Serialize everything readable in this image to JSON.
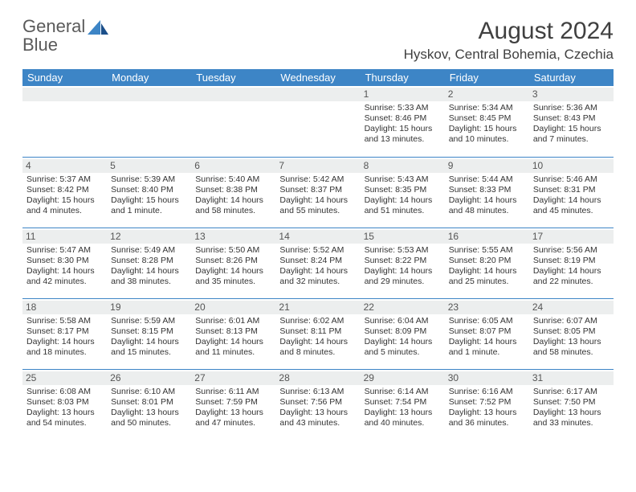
{
  "logo": {
    "word1": "General",
    "word2": "Blue"
  },
  "title": "August 2024",
  "location": "Hyskov, Central Bohemia, Czechia",
  "colors": {
    "header_bg": "#3d85c6",
    "header_text": "#ffffff",
    "daynum_bg": "#eceeee",
    "border": "#3d85c6",
    "text": "#333333",
    "logo_gray": "#5a5a5a",
    "logo_blue": "#3d85c6"
  },
  "weekdays": [
    "Sunday",
    "Monday",
    "Tuesday",
    "Wednesday",
    "Thursday",
    "Friday",
    "Saturday"
  ],
  "weeks": [
    [
      null,
      null,
      null,
      null,
      {
        "n": "1",
        "sunrise": "5:33 AM",
        "sunset": "8:46 PM",
        "daylight": "15 hours and 13 minutes."
      },
      {
        "n": "2",
        "sunrise": "5:34 AM",
        "sunset": "8:45 PM",
        "daylight": "15 hours and 10 minutes."
      },
      {
        "n": "3",
        "sunrise": "5:36 AM",
        "sunset": "8:43 PM",
        "daylight": "15 hours and 7 minutes."
      }
    ],
    [
      {
        "n": "4",
        "sunrise": "5:37 AM",
        "sunset": "8:42 PM",
        "daylight": "15 hours and 4 minutes."
      },
      {
        "n": "5",
        "sunrise": "5:39 AM",
        "sunset": "8:40 PM",
        "daylight": "15 hours and 1 minute."
      },
      {
        "n": "6",
        "sunrise": "5:40 AM",
        "sunset": "8:38 PM",
        "daylight": "14 hours and 58 minutes."
      },
      {
        "n": "7",
        "sunrise": "5:42 AM",
        "sunset": "8:37 PM",
        "daylight": "14 hours and 55 minutes."
      },
      {
        "n": "8",
        "sunrise": "5:43 AM",
        "sunset": "8:35 PM",
        "daylight": "14 hours and 51 minutes."
      },
      {
        "n": "9",
        "sunrise": "5:44 AM",
        "sunset": "8:33 PM",
        "daylight": "14 hours and 48 minutes."
      },
      {
        "n": "10",
        "sunrise": "5:46 AM",
        "sunset": "8:31 PM",
        "daylight": "14 hours and 45 minutes."
      }
    ],
    [
      {
        "n": "11",
        "sunrise": "5:47 AM",
        "sunset": "8:30 PM",
        "daylight": "14 hours and 42 minutes."
      },
      {
        "n": "12",
        "sunrise": "5:49 AM",
        "sunset": "8:28 PM",
        "daylight": "14 hours and 38 minutes."
      },
      {
        "n": "13",
        "sunrise": "5:50 AM",
        "sunset": "8:26 PM",
        "daylight": "14 hours and 35 minutes."
      },
      {
        "n": "14",
        "sunrise": "5:52 AM",
        "sunset": "8:24 PM",
        "daylight": "14 hours and 32 minutes."
      },
      {
        "n": "15",
        "sunrise": "5:53 AM",
        "sunset": "8:22 PM",
        "daylight": "14 hours and 29 minutes."
      },
      {
        "n": "16",
        "sunrise": "5:55 AM",
        "sunset": "8:20 PM",
        "daylight": "14 hours and 25 minutes."
      },
      {
        "n": "17",
        "sunrise": "5:56 AM",
        "sunset": "8:19 PM",
        "daylight": "14 hours and 22 minutes."
      }
    ],
    [
      {
        "n": "18",
        "sunrise": "5:58 AM",
        "sunset": "8:17 PM",
        "daylight": "14 hours and 18 minutes."
      },
      {
        "n": "19",
        "sunrise": "5:59 AM",
        "sunset": "8:15 PM",
        "daylight": "14 hours and 15 minutes."
      },
      {
        "n": "20",
        "sunrise": "6:01 AM",
        "sunset": "8:13 PM",
        "daylight": "14 hours and 11 minutes."
      },
      {
        "n": "21",
        "sunrise": "6:02 AM",
        "sunset": "8:11 PM",
        "daylight": "14 hours and 8 minutes."
      },
      {
        "n": "22",
        "sunrise": "6:04 AM",
        "sunset": "8:09 PM",
        "daylight": "14 hours and 5 minutes."
      },
      {
        "n": "23",
        "sunrise": "6:05 AM",
        "sunset": "8:07 PM",
        "daylight": "14 hours and 1 minute."
      },
      {
        "n": "24",
        "sunrise": "6:07 AM",
        "sunset": "8:05 PM",
        "daylight": "13 hours and 58 minutes."
      }
    ],
    [
      {
        "n": "25",
        "sunrise": "6:08 AM",
        "sunset": "8:03 PM",
        "daylight": "13 hours and 54 minutes."
      },
      {
        "n": "26",
        "sunrise": "6:10 AM",
        "sunset": "8:01 PM",
        "daylight": "13 hours and 50 minutes."
      },
      {
        "n": "27",
        "sunrise": "6:11 AM",
        "sunset": "7:59 PM",
        "daylight": "13 hours and 47 minutes."
      },
      {
        "n": "28",
        "sunrise": "6:13 AM",
        "sunset": "7:56 PM",
        "daylight": "13 hours and 43 minutes."
      },
      {
        "n": "29",
        "sunrise": "6:14 AM",
        "sunset": "7:54 PM",
        "daylight": "13 hours and 40 minutes."
      },
      {
        "n": "30",
        "sunrise": "6:16 AM",
        "sunset": "7:52 PM",
        "daylight": "13 hours and 36 minutes."
      },
      {
        "n": "31",
        "sunrise": "6:17 AM",
        "sunset": "7:50 PM",
        "daylight": "13 hours and 33 minutes."
      }
    ]
  ],
  "labels": {
    "sunrise": "Sunrise: ",
    "sunset": "Sunset: ",
    "daylight": "Daylight: "
  }
}
